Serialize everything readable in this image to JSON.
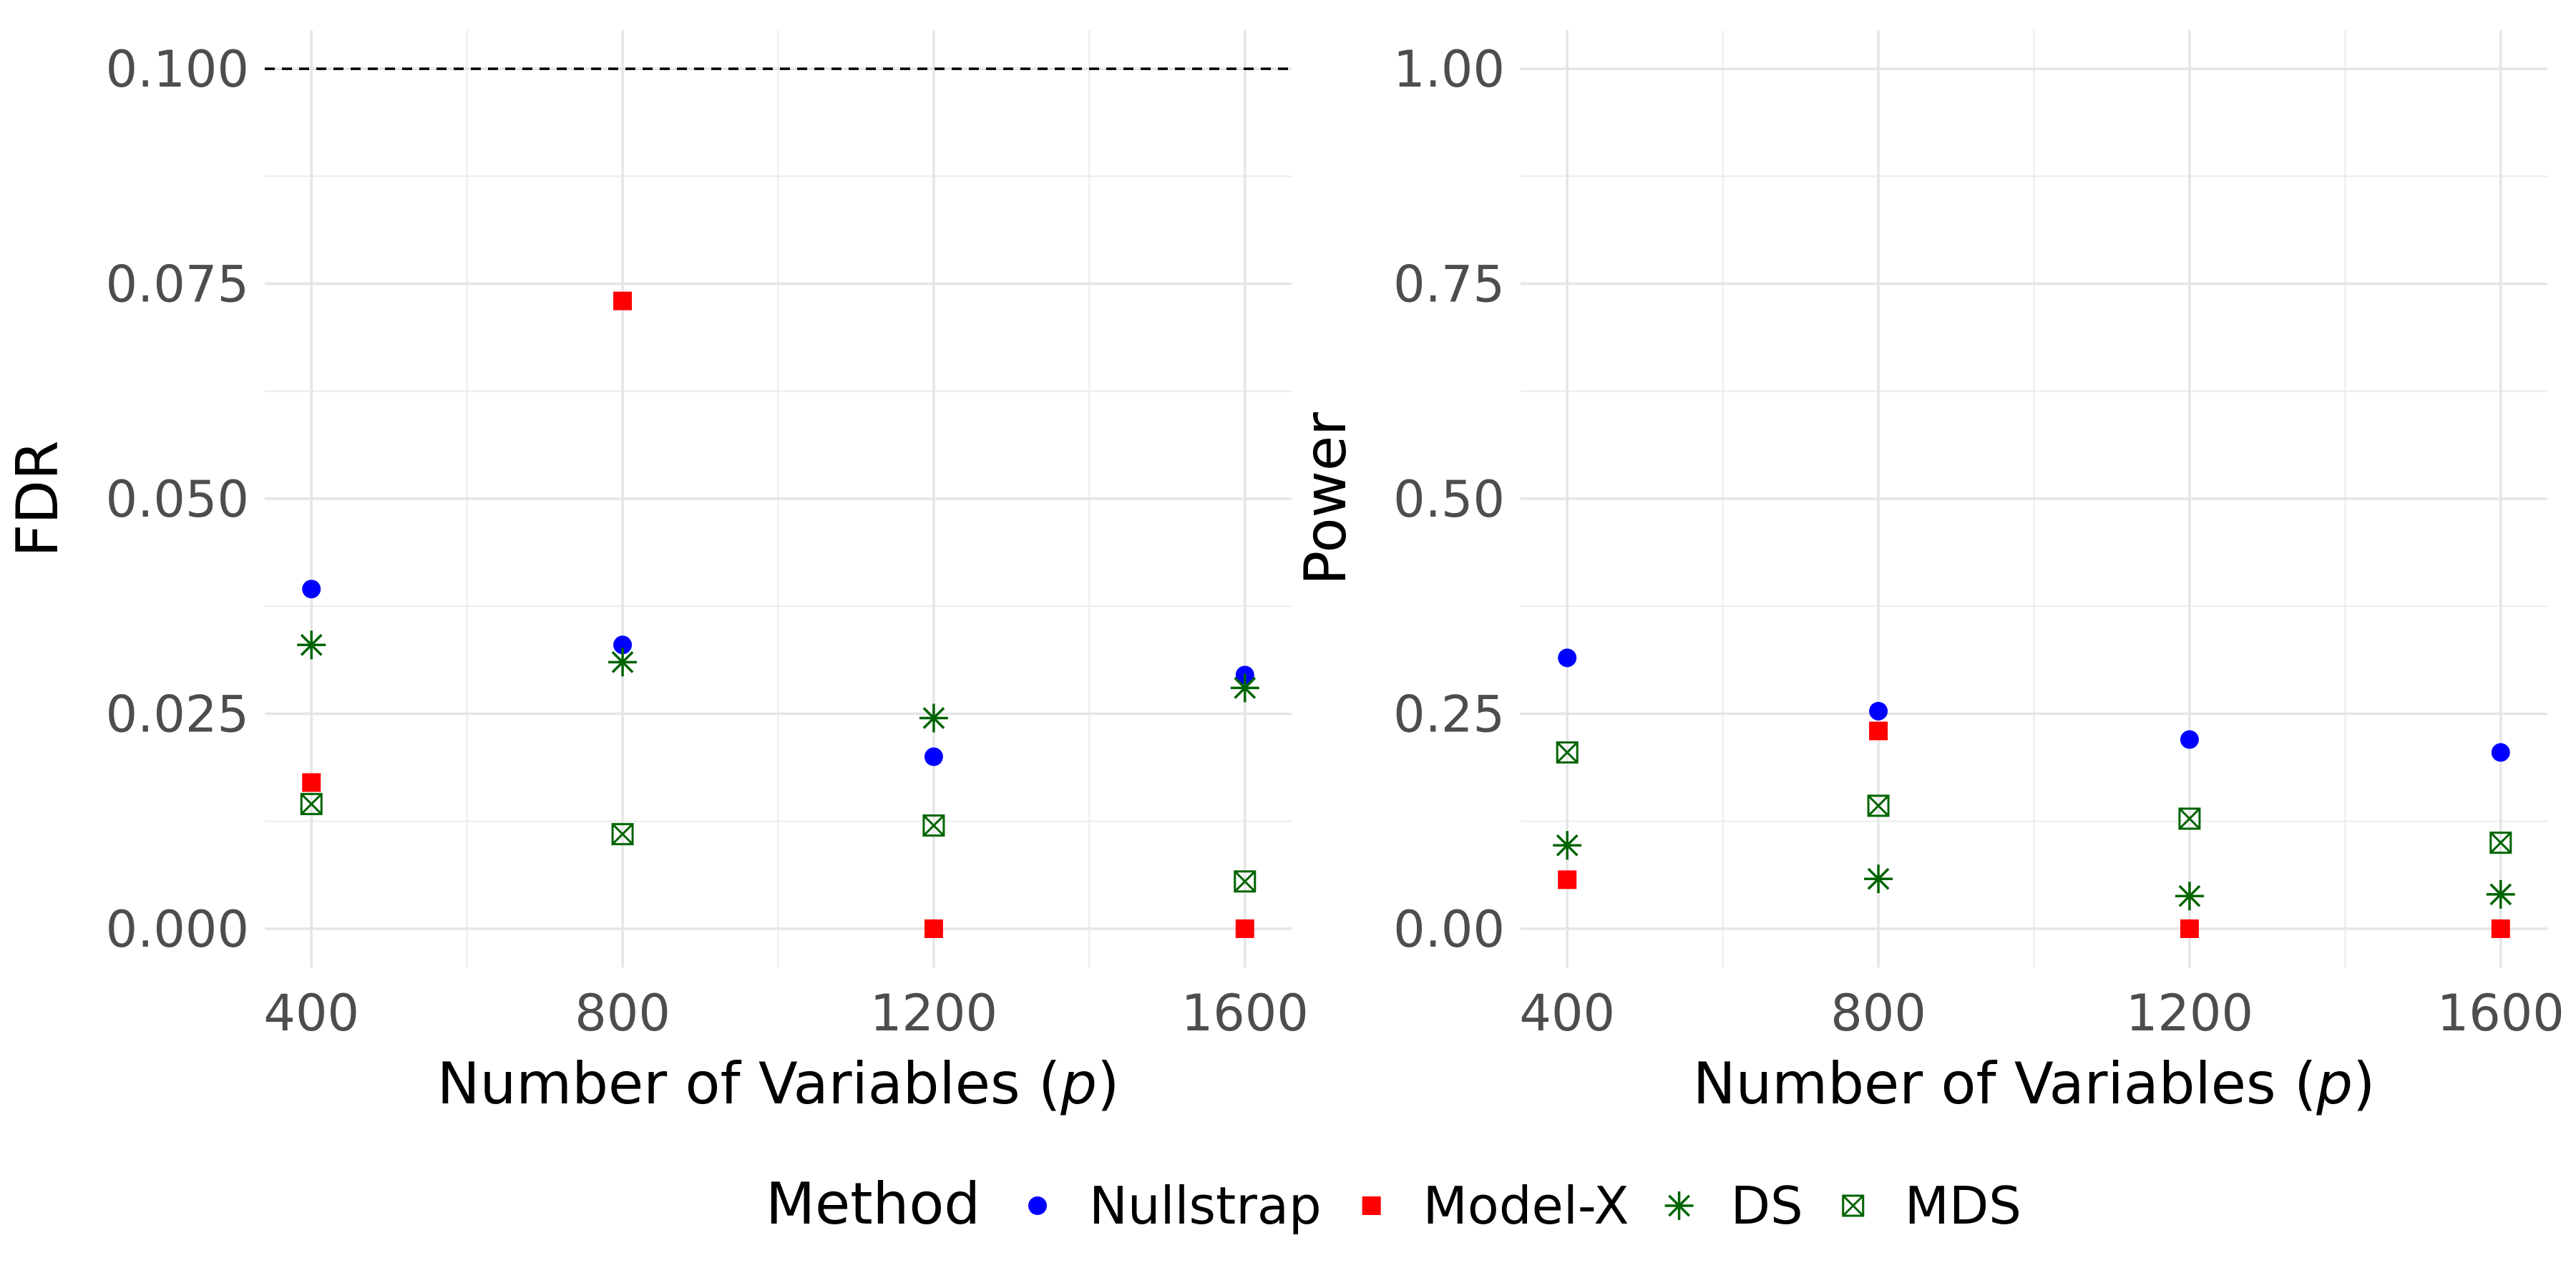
{
  "chart_data": [
    {
      "type": "scatter",
      "ylabel": "FDR",
      "xlabel": "Number of Variables (",
      "xlabel_var": "p",
      "xlabel_end": ")",
      "x": [
        400,
        800,
        1200,
        1600
      ],
      "xlim": [
        340,
        1660
      ],
      "ylim": [
        -0.0045,
        0.1045
      ],
      "x_ticks": [
        400,
        800,
        1200,
        1600
      ],
      "y_ticks": [
        0.0,
        0.025,
        0.05,
        0.075,
        0.1
      ],
      "y_tick_labels": [
        "0.000",
        "0.025",
        "0.050",
        "0.075",
        "0.100"
      ],
      "reference_line": 0.1,
      "grid": true,
      "series": [
        {
          "name": "Nullstrap",
          "values": [
            0.0395,
            0.033,
            0.02,
            0.0295
          ]
        },
        {
          "name": "Model-X",
          "values": [
            0.017,
            0.073,
            0.0,
            0.0
          ]
        },
        {
          "name": "DS",
          "values": [
            0.033,
            0.031,
            0.0245,
            0.028
          ]
        },
        {
          "name": "MDS",
          "values": [
            0.0145,
            0.011,
            0.012,
            0.0055
          ]
        }
      ]
    },
    {
      "type": "scatter",
      "ylabel": "Power",
      "xlabel": "Number of Variables (",
      "xlabel_var": "p",
      "xlabel_end": ")",
      "x": [
        400,
        800,
        1200,
        1600
      ],
      "xlim": [
        340,
        1660
      ],
      "ylim": [
        -0.045,
        1.045
      ],
      "x_ticks": [
        400,
        800,
        1200,
        1600
      ],
      "y_ticks": [
        0.0,
        0.25,
        0.5,
        0.75,
        1.0
      ],
      "y_tick_labels": [
        "0.00",
        "0.25",
        "0.50",
        "0.75",
        "1.00"
      ],
      "grid": true,
      "series": [
        {
          "name": "Nullstrap",
          "values": [
            0.315,
            0.253,
            0.22,
            0.205
          ]
        },
        {
          "name": "Model-X",
          "values": [
            0.057,
            0.23,
            0.0,
            0.0
          ]
        },
        {
          "name": "DS",
          "values": [
            0.097,
            0.058,
            0.038,
            0.04
          ]
        },
        {
          "name": "MDS",
          "values": [
            0.205,
            0.143,
            0.128,
            0.1
          ]
        }
      ]
    }
  ],
  "legend": {
    "title": "Method",
    "entries": [
      {
        "name": "Nullstrap",
        "shape": "circle",
        "color": "#0000ff"
      },
      {
        "name": "Model-X",
        "shape": "square",
        "color": "#ff0000"
      },
      {
        "name": "DS",
        "shape": "asterisk",
        "color": "#006400"
      },
      {
        "name": "MDS",
        "shape": "boxed-x",
        "color": "#006400"
      }
    ]
  }
}
